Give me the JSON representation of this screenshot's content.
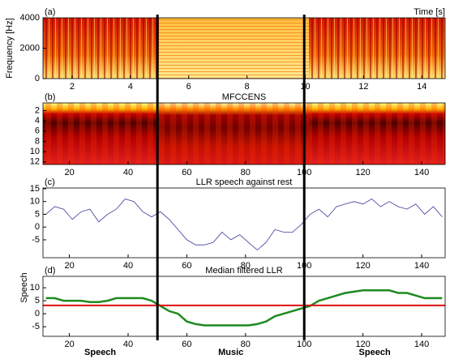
{
  "chart_data": [
    {
      "type": "spectrogram",
      "panel_label": "(a)",
      "xlabel": "Time [s]",
      "ylabel": "Frequency [Hz]",
      "xlim": [
        1,
        14.8
      ],
      "xticks": [
        2,
        4,
        6,
        8,
        10,
        12,
        14
      ],
      "ylim": [
        0,
        4000
      ],
      "yticks": [
        0,
        2000,
        4000
      ]
    },
    {
      "type": "heatmap",
      "panel_label": "(b)",
      "title": "MFCCENS",
      "xlim": [
        11,
        148
      ],
      "xticks": [
        20,
        40,
        60,
        80,
        100,
        120,
        140
      ],
      "ylim": [
        12.5,
        0.5
      ],
      "yticks": [
        2,
        4,
        6,
        8,
        10,
        12
      ]
    },
    {
      "type": "line",
      "panel_label": "(c)",
      "title": "LLR speech against rest",
      "color": "#3a3a9a",
      "xlim": [
        11,
        148
      ],
      "xticks": [
        20,
        40,
        60,
        80,
        100,
        120,
        140
      ],
      "ylim": [
        -12,
        15.3
      ],
      "yticks": [
        -5,
        0,
        5,
        10,
        15
      ],
      "x": [
        12,
        15,
        18,
        21,
        24,
        27,
        30,
        33,
        36,
        39,
        42,
        45,
        48,
        51,
        54,
        57,
        60,
        63,
        66,
        69,
        72,
        75,
        78,
        81,
        84,
        87,
        90,
        93,
        96,
        99,
        102,
        105,
        108,
        111,
        114,
        117,
        120,
        123,
        126,
        129,
        132,
        135,
        138,
        141,
        144,
        147
      ],
      "values": [
        5,
        8,
        7,
        3,
        6,
        7,
        2,
        5,
        7,
        11,
        10,
        6,
        4,
        6,
        3,
        -1,
        -5,
        -7,
        -7,
        -6,
        -2,
        -5,
        -3,
        -6,
        -9,
        -6,
        -1,
        -2,
        -2,
        1,
        5,
        7,
        4,
        8,
        9,
        10,
        9,
        11,
        8,
        10,
        8,
        7,
        9,
        5,
        8,
        4
      ]
    },
    {
      "type": "line",
      "panel_label": "(d)",
      "title": "Median filtered LLR",
      "ylabel": "Speech",
      "color": "#1f8a1f",
      "xlim": [
        11,
        148
      ],
      "xticks": [
        20,
        40,
        60,
        80,
        100,
        120,
        140
      ],
      "ylim": [
        -8.7,
        14.4
      ],
      "yticks": [
        -5,
        0,
        5,
        10
      ],
      "x": [
        12,
        15,
        18,
        21,
        24,
        27,
        30,
        33,
        36,
        39,
        42,
        45,
        48,
        51,
        54,
        57,
        60,
        63,
        66,
        69,
        72,
        75,
        78,
        81,
        84,
        87,
        90,
        93,
        96,
        99,
        102,
        105,
        108,
        111,
        114,
        117,
        120,
        123,
        126,
        129,
        132,
        135,
        138,
        141,
        144,
        147
      ],
      "values": [
        6,
        6,
        5,
        5,
        5,
        4.5,
        4.5,
        5,
        6,
        6,
        6,
        6,
        5,
        3,
        1,
        0,
        -3,
        -4,
        -4.5,
        -4.5,
        -4.5,
        -4.5,
        -4.5,
        -4.5,
        -4,
        -3,
        -1,
        0,
        1,
        2,
        3,
        5,
        6,
        7,
        8,
        8.5,
        9,
        9,
        9,
        9,
        8,
        8,
        7,
        6,
        6,
        6
      ],
      "threshold": 3.2,
      "threshold_color": "#e01010",
      "boundaries": [
        50,
        100
      ],
      "segments": [
        "Speech",
        "Music",
        "Speech"
      ],
      "segment_color": "#1f8a1f"
    }
  ]
}
